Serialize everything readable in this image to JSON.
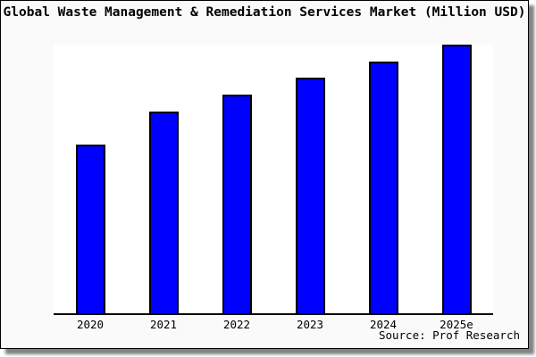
{
  "title": "Global Waste Management & Remediation Services Market (Million USD)",
  "source_note": "Source: Prof Research",
  "colors": {
    "bar_fill": "#0000ff",
    "bar_border": "#000000",
    "axis": "#000000",
    "card_background": "#fafafa",
    "plot_background": "#ffffff",
    "text": "#000000"
  },
  "chart_data": {
    "type": "bar",
    "title": "Global Waste Management & Remediation Services Market (Million USD)",
    "categories": [
      "2020",
      "2021",
      "2022",
      "2023",
      "2024",
      "2025e"
    ],
    "values": [
      62.7,
      75.2,
      81.5,
      87.8,
      93.7,
      100
    ],
    "values_note": "No y-axis ticks are shown in the image; values are relative bar heights indexed to 2025e = 100",
    "xlabel": "",
    "ylabel": "",
    "ylim": [
      0,
      100
    ],
    "y_axis_visible": false,
    "grid": false,
    "legend": false,
    "annotations": [
      "Source: Prof Research"
    ]
  }
}
